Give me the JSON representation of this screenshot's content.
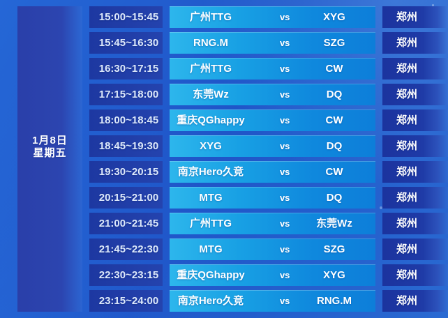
{
  "date": {
    "line1": "1月8日",
    "line2": "星期五"
  },
  "schedule": {
    "rows": [
      {
        "time": "15:00~15:45",
        "team_a": "广州TTG",
        "vs": "vs",
        "team_b": "XYG",
        "location": "郑州"
      },
      {
        "time": "15:45~16:30",
        "team_a": "RNG.M",
        "vs": "vs",
        "team_b": "SZG",
        "location": "郑州"
      },
      {
        "time": "16:30~17:15",
        "team_a": "广州TTG",
        "vs": "vs",
        "team_b": "CW",
        "location": "郑州"
      },
      {
        "time": "17:15~18:00",
        "team_a": "东莞Wz",
        "vs": "vs",
        "team_b": "DQ",
        "location": "郑州"
      },
      {
        "time": "18:00~18:45",
        "team_a": "重庆QGhappy",
        "vs": "vs",
        "team_b": "CW",
        "location": "郑州"
      },
      {
        "time": "18:45~19:30",
        "team_a": "XYG",
        "vs": "vs",
        "team_b": "DQ",
        "location": "郑州"
      },
      {
        "time": "19:30~20:15",
        "team_a": "南京Hero久竞",
        "vs": "vs",
        "team_b": "CW",
        "location": "郑州"
      },
      {
        "time": "20:15~21:00",
        "team_a": "MTG",
        "vs": "vs",
        "team_b": "DQ",
        "location": "郑州"
      },
      {
        "time": "21:00~21:45",
        "team_a": "广州TTG",
        "vs": "vs",
        "team_b": "东莞Wz",
        "location": "郑州"
      },
      {
        "time": "21:45~22:30",
        "team_a": "MTG",
        "vs": "vs",
        "team_b": "SZG",
        "location": "郑州"
      },
      {
        "time": "22:30~23:15",
        "team_a": "重庆QGhappy",
        "vs": "vs",
        "team_b": "XYG",
        "location": "郑州"
      },
      {
        "time": "23:15~24:00",
        "team_a": "南京Hero久竞",
        "vs": "vs",
        "team_b": "RNG.M",
        "location": "郑州"
      }
    ]
  },
  "colors": {
    "page_bg_1": "#2567d6",
    "page_bg_2": "#1f55c8",
    "page_bg_3": "#2a6ad2",
    "date_cell_1": "#2a3fa9",
    "date_cell_2": "#2c45b0",
    "time_cell_1": "#1d38a1",
    "time_cell_2": "#2443ae",
    "match_cell_1": "#2db6ec",
    "match_cell_2": "#18a0e4",
    "match_cell_3": "#0f88dd",
    "match_cell_4": "#0d7ed9",
    "loc_cell_1": "#1b339e",
    "loc_cell_2": "#1f3ba7",
    "loc_cell_3": "#2c52bb",
    "text_primary": "#ffffff",
    "text_time": "#dde9fb"
  }
}
